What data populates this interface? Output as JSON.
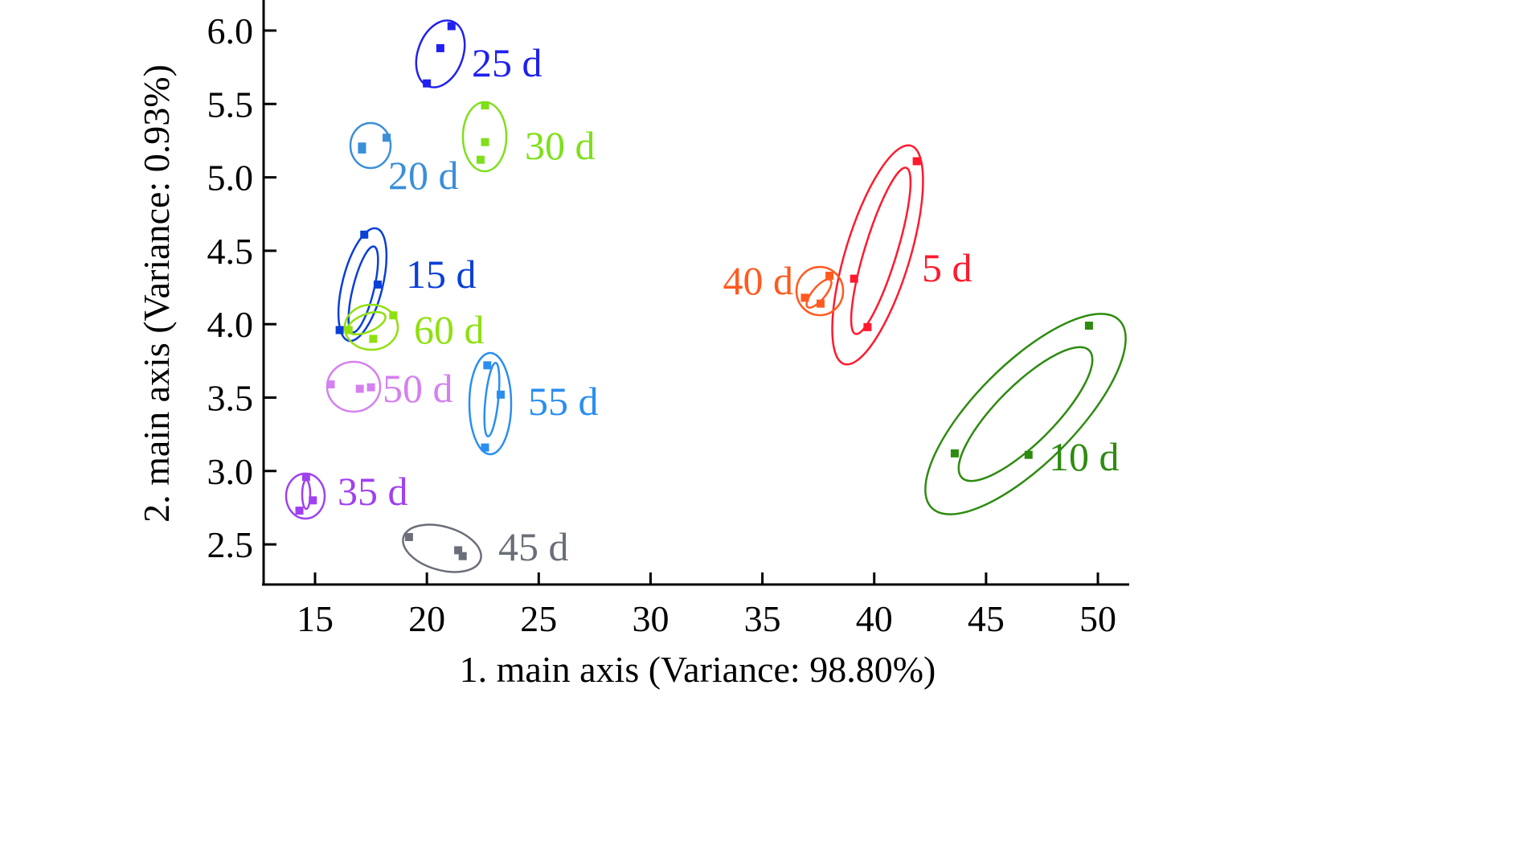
{
  "chart_data": {
    "type": "scatter",
    "title": "",
    "xlabel": "1. main axis (Variance: 98.80%)",
    "ylabel": "2. main axis (Variance: 0.93%)",
    "xlim": [
      12.6,
      51.3
    ],
    "ylim": [
      2.24,
      6.2
    ],
    "xticks": [
      "15",
      "20",
      "25",
      "30",
      "35",
      "40",
      "45",
      "50"
    ],
    "xtick_values": [
      15,
      20,
      25,
      30,
      35,
      40,
      45,
      50
    ],
    "yticks": [
      "2.5",
      "3.0",
      "3.5",
      "4.0",
      "4.5",
      "5.0",
      "5.5",
      "6.0"
    ],
    "ytick_values": [
      2.5,
      3.0,
      3.5,
      4.0,
      4.5,
      5.0,
      5.5,
      6.0
    ],
    "grid": false,
    "legend": "none",
    "series": [
      {
        "name": "5 d",
        "color": "#ff1a2e",
        "x": [
          41.9,
          39.1,
          39.7
        ],
        "y": [
          5.11,
          4.31,
          3.98
        ]
      },
      {
        "name": "10 d",
        "color": "#2e8b10",
        "x": [
          49.6,
          46.9,
          43.6
        ],
        "y": [
          3.99,
          3.11,
          3.12
        ]
      },
      {
        "name": "15 d",
        "color": "#0a3fd8",
        "x": [
          17.2,
          17.8,
          16.1
        ],
        "y": [
          4.61,
          4.27,
          3.96
        ]
      },
      {
        "name": "20 d",
        "color": "#3a8fd8",
        "x": [
          17.1,
          17.1,
          18.2
        ],
        "y": [
          5.21,
          5.19,
          5.27
        ]
      },
      {
        "name": "25 d",
        "color": "#2020f0",
        "x": [
          21.1,
          20.6,
          20.0
        ],
        "y": [
          6.03,
          5.88,
          5.64
        ]
      },
      {
        "name": "30 d",
        "color": "#7ee01a",
        "x": [
          22.6,
          22.6,
          22.4
        ],
        "y": [
          5.49,
          5.24,
          5.12
        ]
      },
      {
        "name": "35 d",
        "color": "#a040f0",
        "x": [
          14.6,
          14.9,
          14.3
        ],
        "y": [
          2.96,
          2.8,
          2.73
        ]
      },
      {
        "name": "40 d",
        "color": "#ff5a20",
        "x": [
          38.0,
          36.9,
          37.6
        ],
        "y": [
          4.33,
          4.18,
          4.14
        ]
      },
      {
        "name": "45 d",
        "color": "#6a6e78",
        "x": [
          19.2,
          21.4,
          21.6
        ],
        "y": [
          2.55,
          2.46,
          2.42
        ]
      },
      {
        "name": "50 d",
        "color": "#d580f0",
        "x": [
          15.7,
          17.0,
          17.5
        ],
        "y": [
          3.59,
          3.56,
          3.57
        ]
      },
      {
        "name": "55 d",
        "color": "#2a8ef0",
        "x": [
          22.7,
          23.3,
          22.6
        ],
        "y": [
          3.72,
          3.52,
          3.16
        ]
      },
      {
        "name": "60 d",
        "color": "#90e010",
        "x": [
          18.5,
          17.6,
          16.5
        ],
        "y": [
          4.06,
          3.9,
          3.96
        ]
      }
    ]
  }
}
